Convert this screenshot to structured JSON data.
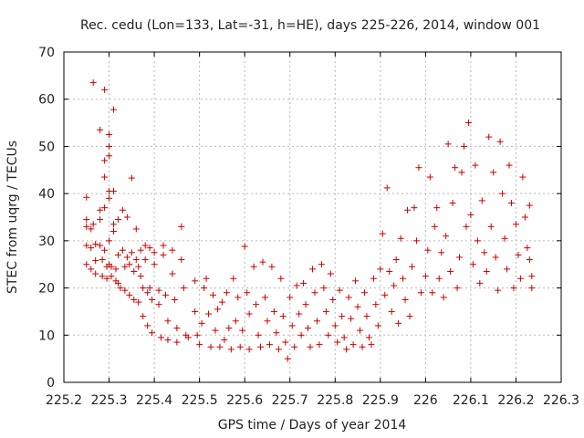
{
  "chart_data": {
    "type": "scatter",
    "title": "Rec. cedu (Lon=133, Lat=-31, h=HE), days 225-226, 2014, window 001",
    "xlabel": "GPS time / Days of year 2014",
    "ylabel": "STEC from uqrg / TECUs",
    "xlim": [
      225.2,
      226.3
    ],
    "ylim": [
      0,
      70
    ],
    "xticks": [
      225.2,
      225.3,
      225.4,
      225.5,
      225.6,
      225.7,
      225.8,
      225.9,
      226,
      226.1,
      226.2,
      226.3
    ],
    "xtick_labels": [
      "225.2",
      "225.3",
      "225.4",
      "225.5",
      "225.6",
      "225.7",
      "225.8",
      "225.9",
      "226",
      "226.1",
      "226.2",
      "226.3"
    ],
    "yticks": [
      0,
      10,
      20,
      30,
      40,
      50,
      60,
      70
    ],
    "ytick_labels": [
      "0",
      "10",
      "20",
      "30",
      "40",
      "50",
      "60",
      "70"
    ],
    "grid": true,
    "marker": "+",
    "color": "#cc0000",
    "series": [
      {
        "name": "",
        "points": [
          [
            225.25,
            39.2
          ],
          [
            225.25,
            34.5
          ],
          [
            225.25,
            33.0
          ],
          [
            225.25,
            29.0
          ],
          [
            225.25,
            25.0
          ],
          [
            225.26,
            24.0
          ],
          [
            225.26,
            28.5
          ],
          [
            225.26,
            32.5
          ],
          [
            225.265,
            63.5
          ],
          [
            225.265,
            33.5
          ],
          [
            225.27,
            29.3
          ],
          [
            225.27,
            25.8
          ],
          [
            225.27,
            23.0
          ],
          [
            225.28,
            53.5
          ],
          [
            225.28,
            36.5
          ],
          [
            225.28,
            34.5
          ],
          [
            225.28,
            29.0
          ],
          [
            225.285,
            26.0
          ],
          [
            225.285,
            22.5
          ],
          [
            225.29,
            62.0
          ],
          [
            225.29,
            47.0
          ],
          [
            225.29,
            43.5
          ],
          [
            225.29,
            37.0
          ],
          [
            225.29,
            28.0
          ],
          [
            225.295,
            24.5
          ],
          [
            225.295,
            22.0
          ],
          [
            225.3,
            52.5
          ],
          [
            225.3,
            50.0
          ],
          [
            225.3,
            48.0
          ],
          [
            225.3,
            40.5
          ],
          [
            225.3,
            39.0
          ],
          [
            225.3,
            30.0
          ],
          [
            225.3,
            25.0
          ],
          [
            225.305,
            24.5
          ],
          [
            225.305,
            22.5
          ],
          [
            225.31,
            57.8
          ],
          [
            225.31,
            40.5
          ],
          [
            225.31,
            33.5
          ],
          [
            225.31,
            32.0
          ],
          [
            225.315,
            24.0
          ],
          [
            225.315,
            21.5
          ],
          [
            225.32,
            34.5
          ],
          [
            225.32,
            27.0
          ],
          [
            225.32,
            21.0
          ],
          [
            225.325,
            20.0
          ],
          [
            225.33,
            36.5
          ],
          [
            225.33,
            28.0
          ],
          [
            225.335,
            24.5
          ],
          [
            225.335,
            19.5
          ],
          [
            225.34,
            35.0
          ],
          [
            225.34,
            26.5
          ],
          [
            225.345,
            25.0
          ],
          [
            225.345,
            18.5
          ],
          [
            225.35,
            43.3
          ],
          [
            225.35,
            27.5
          ],
          [
            225.355,
            23.5
          ],
          [
            225.355,
            17.5
          ],
          [
            225.36,
            32.5
          ],
          [
            225.36,
            26.0
          ],
          [
            225.365,
            24.5
          ],
          [
            225.365,
            17.0
          ],
          [
            225.37,
            28.0
          ],
          [
            225.37,
            22.5
          ],
          [
            225.375,
            20.0
          ],
          [
            225.375,
            14.0
          ],
          [
            225.38,
            29.0
          ],
          [
            225.38,
            26.0
          ],
          [
            225.385,
            19.0
          ],
          [
            225.385,
            12.0
          ],
          [
            225.39,
            28.5
          ],
          [
            225.39,
            20.0
          ],
          [
            225.395,
            17.5
          ],
          [
            225.395,
            10.5
          ],
          [
            225.4,
            27.5
          ],
          [
            225.4,
            25.0
          ],
          [
            225.41,
            19.5
          ],
          [
            225.41,
            16.5
          ],
          [
            225.415,
            9.5
          ],
          [
            225.42,
            29.0
          ],
          [
            225.42,
            27.0
          ],
          [
            225.425,
            18.5
          ],
          [
            225.43,
            13.0
          ],
          [
            225.43,
            9.0
          ],
          [
            225.44,
            28.0
          ],
          [
            225.44,
            23.0
          ],
          [
            225.445,
            17.5
          ],
          [
            225.45,
            11.5
          ],
          [
            225.45,
            8.5
          ],
          [
            225.46,
            33.0
          ],
          [
            225.46,
            26.0
          ],
          [
            225.465,
            20.0
          ],
          [
            225.47,
            10.0
          ],
          [
            225.475,
            9.5
          ],
          [
            225.49,
            21.5
          ],
          [
            225.49,
            15.0
          ],
          [
            225.495,
            10.0
          ],
          [
            225.5,
            8.0
          ],
          [
            225.505,
            12.5
          ],
          [
            225.51,
            20.0
          ],
          [
            225.515,
            22.0
          ],
          [
            225.52,
            14.5
          ],
          [
            225.525,
            7.5
          ],
          [
            225.53,
            18.5
          ],
          [
            225.535,
            11.0
          ],
          [
            225.54,
            15.5
          ],
          [
            225.545,
            7.5
          ],
          [
            225.55,
            17.0
          ],
          [
            225.555,
            9.0
          ],
          [
            225.56,
            19.0
          ],
          [
            225.565,
            11.5
          ],
          [
            225.57,
            7.0
          ],
          [
            225.575,
            22.0
          ],
          [
            225.58,
            13.0
          ],
          [
            225.585,
            18.0
          ],
          [
            225.59,
            7.5
          ],
          [
            225.595,
            11.0
          ],
          [
            225.6,
            28.8
          ],
          [
            225.605,
            19.0
          ],
          [
            225.61,
            14.5
          ],
          [
            225.61,
            7.0
          ],
          [
            225.62,
            24.5
          ],
          [
            225.625,
            16.5
          ],
          [
            225.63,
            10.0
          ],
          [
            225.635,
            7.5
          ],
          [
            225.64,
            25.5
          ],
          [
            225.645,
            18.0
          ],
          [
            225.65,
            13.0
          ],
          [
            225.655,
            8.0
          ],
          [
            225.66,
            24.5
          ],
          [
            225.665,
            15.0
          ],
          [
            225.67,
            10.5
          ],
          [
            225.675,
            7.0
          ],
          [
            225.68,
            22.0
          ],
          [
            225.685,
            14.0
          ],
          [
            225.69,
            8.5
          ],
          [
            225.695,
            5.0
          ],
          [
            225.7,
            18.0
          ],
          [
            225.705,
            12.0
          ],
          [
            225.71,
            7.5
          ],
          [
            225.715,
            20.5
          ],
          [
            225.72,
            14.5
          ],
          [
            225.725,
            10.0
          ],
          [
            225.73,
            21.0
          ],
          [
            225.735,
            16.5
          ],
          [
            225.74,
            11.5
          ],
          [
            225.745,
            7.5
          ],
          [
            225.75,
            24.0
          ],
          [
            225.755,
            19.0
          ],
          [
            225.76,
            13.0
          ],
          [
            225.765,
            8.0
          ],
          [
            225.77,
            25.0
          ],
          [
            225.775,
            20.0
          ],
          [
            225.78,
            15.0
          ],
          [
            225.785,
            10.0
          ],
          [
            225.79,
            23.0
          ],
          [
            225.795,
            17.5
          ],
          [
            225.8,
            12.0
          ],
          [
            225.805,
            8.5
          ],
          [
            225.81,
            19.5
          ],
          [
            225.815,
            14.0
          ],
          [
            225.82,
            9.5
          ],
          [
            225.825,
            7.0
          ],
          [
            225.83,
            18.0
          ],
          [
            225.835,
            13.5
          ],
          [
            225.84,
            8.0
          ],
          [
            225.845,
            21.5
          ],
          [
            225.85,
            16.0
          ],
          [
            225.855,
            11.0
          ],
          [
            225.86,
            7.5
          ],
          [
            225.865,
            19.0
          ],
          [
            225.87,
            14.0
          ],
          [
            225.875,
            9.5
          ],
          [
            225.88,
            8.0
          ],
          [
            225.885,
            22.0
          ],
          [
            225.89,
            16.5
          ],
          [
            225.895,
            12.0
          ],
          [
            225.9,
            24.0
          ],
          [
            225.905,
            31.5
          ],
          [
            225.91,
            18.5
          ],
          [
            225.915,
            41.2
          ],
          [
            225.92,
            23.5
          ],
          [
            225.925,
            15.0
          ],
          [
            225.93,
            20.5
          ],
          [
            225.935,
            26.0
          ],
          [
            225.94,
            12.5
          ],
          [
            225.945,
            30.5
          ],
          [
            225.95,
            22.0
          ],
          [
            225.955,
            17.5
          ],
          [
            225.96,
            36.5
          ],
          [
            225.965,
            14.0
          ],
          [
            225.97,
            24.5
          ],
          [
            225.975,
            37.0
          ],
          [
            225.98,
            30.0
          ],
          [
            225.985,
            45.5
          ],
          [
            225.99,
            19.0
          ],
          [
            226.0,
            22.5
          ],
          [
            226.005,
            28.0
          ],
          [
            226.01,
            43.5
          ],
          [
            226.015,
            19.0
          ],
          [
            226.02,
            33.0
          ],
          [
            226.025,
            37.0
          ],
          [
            226.03,
            22.0
          ],
          [
            226.035,
            27.5
          ],
          [
            226.04,
            18.0
          ],
          [
            226.045,
            31.0
          ],
          [
            226.05,
            50.5
          ],
          [
            226.055,
            23.5
          ],
          [
            226.06,
            38.0
          ],
          [
            226.065,
            45.5
          ],
          [
            226.07,
            20.0
          ],
          [
            226.075,
            26.5
          ],
          [
            226.08,
            44.5
          ],
          [
            226.085,
            50.0
          ],
          [
            226.09,
            33.0
          ],
          [
            226.095,
            55.0
          ],
          [
            226.1,
            35.5
          ],
          [
            226.105,
            25.0
          ],
          [
            226.11,
            46.0
          ],
          [
            226.115,
            30.0
          ],
          [
            226.12,
            21.0
          ],
          [
            226.125,
            38.5
          ],
          [
            226.13,
            27.5
          ],
          [
            226.135,
            23.5
          ],
          [
            226.14,
            52.0
          ],
          [
            226.145,
            33.0
          ],
          [
            226.15,
            44.5
          ],
          [
            226.155,
            26.5
          ],
          [
            226.16,
            19.5
          ],
          [
            226.165,
            51.0
          ],
          [
            226.17,
            40.0
          ],
          [
            226.175,
            30.5
          ],
          [
            226.18,
            24.0
          ],
          [
            226.185,
            46.0
          ],
          [
            226.19,
            38.0
          ],
          [
            226.195,
            20.0
          ],
          [
            226.2,
            33.5
          ],
          [
            226.205,
            27.0
          ],
          [
            226.21,
            22.0
          ],
          [
            226.215,
            43.5
          ],
          [
            226.22,
            35.0
          ],
          [
            226.225,
            28.5
          ],
          [
            226.23,
            37.5
          ],
          [
            226.23,
            26.0
          ],
          [
            226.235,
            22.5
          ],
          [
            226.235,
            20.0
          ]
        ]
      }
    ]
  }
}
